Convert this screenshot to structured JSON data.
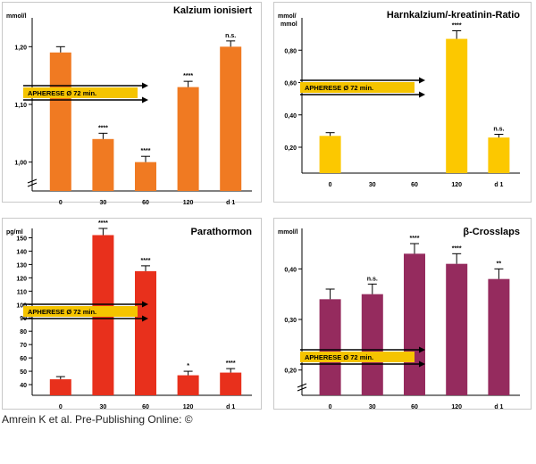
{
  "caption": "Amrein K et al. Pre-Publishing Online: ©",
  "colors": {
    "panel_border": "#c8c8c8",
    "axis": "#000000",
    "band_fill": "#f5c400",
    "arrow": "#000000"
  },
  "chart_data": [
    {
      "type": "bar",
      "title": "Kalzium ionisiert",
      "ylabel": "mmol/l",
      "ylabel_line2": "",
      "categories": [
        "0",
        "30",
        "60",
        "120",
        "d 1"
      ],
      "values": [
        1.19,
        1.04,
        1.0,
        1.13,
        1.2
      ],
      "errors": [
        0.01,
        0.01,
        0.01,
        0.01,
        0.01
      ],
      "significance": [
        "",
        "****",
        "****",
        "****",
        "n.s."
      ],
      "ylim": [
        0.95,
        1.25
      ],
      "yticks": [
        1.0,
        1.1,
        1.2
      ],
      "ytick_labels": [
        "1,00",
        "1,10",
        "1,20"
      ],
      "axis_break": true,
      "bar_color": "#f07a22",
      "annotation": "APHERESE Ø 72 min."
    },
    {
      "type": "bar",
      "title": "Harnkalzium/-kreatinin-Ratio",
      "ylabel": "mmol/",
      "ylabel_line2": "mmol",
      "categories": [
        "0",
        "30",
        "60",
        "120",
        "d 1"
      ],
      "values": [
        0.27,
        null,
        null,
        0.87,
        0.26
      ],
      "errors": [
        0.02,
        null,
        null,
        0.05,
        0.02
      ],
      "significance": [
        "",
        "",
        "",
        "****",
        "n.s."
      ],
      "ylim": [
        0.04,
        1.0
      ],
      "yticks": [
        0.2,
        0.4,
        0.6,
        0.8
      ],
      "ytick_labels": [
        "0,20",
        "0,40",
        "0,60",
        "0,80"
      ],
      "axis_break": false,
      "bar_color": "#fcc800",
      "annotation": "APHERESE Ø 72 min."
    },
    {
      "type": "bar",
      "title": "Parathormon",
      "ylabel": "pg/ml",
      "ylabel_line2": "",
      "categories": [
        "0",
        "30",
        "60",
        "120",
        "d 1"
      ],
      "values": [
        44,
        152,
        125,
        47,
        49
      ],
      "errors": [
        2,
        5,
        4,
        3,
        3
      ],
      "significance": [
        "",
        "****",
        "****",
        "*",
        "****"
      ],
      "ylim": [
        32,
        157
      ],
      "yticks": [
        40,
        50,
        60,
        70,
        80,
        90,
        100,
        110,
        120,
        130,
        140,
        150
      ],
      "ytick_labels": [
        "40",
        "50",
        "60",
        "70",
        "80",
        "90",
        "100",
        "110",
        "120",
        "130",
        "140",
        "150"
      ],
      "axis_break": false,
      "bar_color": "#e8301c",
      "annotation": "APHERESE Ø 72 min."
    },
    {
      "type": "bar",
      "title": "β-Crosslaps",
      "ylabel": "mmol/l",
      "ylabel_line2": "",
      "categories": [
        "0",
        "30",
        "60",
        "120",
        "d 1"
      ],
      "values": [
        0.34,
        0.35,
        0.43,
        0.41,
        0.38
      ],
      "errors": [
        0.02,
        0.02,
        0.02,
        0.02,
        0.02
      ],
      "significance": [
        "",
        "n.s.",
        "****",
        "****",
        "**"
      ],
      "ylim": [
        0.15,
        0.48
      ],
      "yticks": [
        0.2,
        0.3,
        0.4
      ],
      "ytick_labels": [
        "0,20",
        "0,30",
        "0,40"
      ],
      "axis_break": true,
      "bar_color": "#952b5e",
      "annotation": "APHERESE Ø 72 min."
    }
  ]
}
